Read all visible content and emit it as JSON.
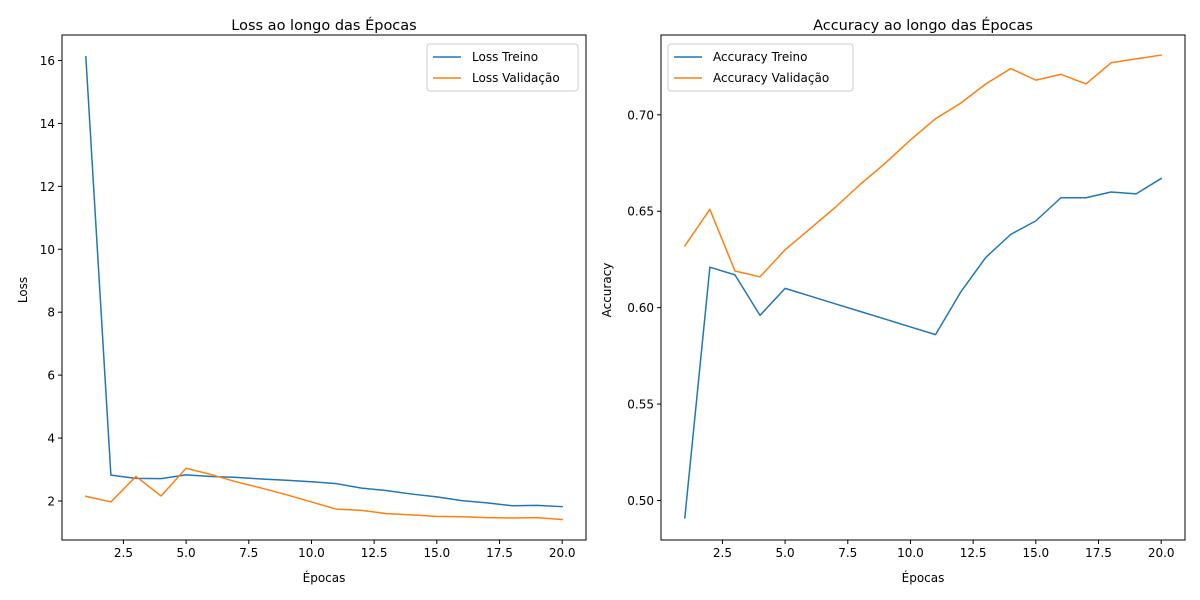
{
  "colors": {
    "series_1": "#1f77b4",
    "series_2": "#ff7f0e",
    "axis": "#000000",
    "background": "#ffffff"
  },
  "chart_data": [
    {
      "type": "line",
      "title": "Loss ao longo das Épocas",
      "xlabel": "Épocas",
      "ylabel": "Loss",
      "x": [
        1,
        2,
        3,
        4,
        5,
        6,
        7,
        8,
        9,
        10,
        11,
        12,
        13,
        14,
        15,
        16,
        17,
        18,
        19,
        20
      ],
      "xticks": [
        "2.5",
        "5.0",
        "7.5",
        "10.0",
        "12.5",
        "15.0",
        "17.5",
        "20.0"
      ],
      "yticks": [
        "2",
        "4",
        "6",
        "8",
        "10",
        "12",
        "14",
        "16"
      ],
      "xlim": [
        0.05,
        20.95
      ],
      "ylim": [
        0.76,
        16.81
      ],
      "grid": false,
      "legend_position": "top-right",
      "series": [
        {
          "name": "Loss Treino",
          "values": [
            16.12,
            2.82,
            2.72,
            2.71,
            2.83,
            2.78,
            2.75,
            2.7,
            2.66,
            2.61,
            2.55,
            2.41,
            2.33,
            2.22,
            2.13,
            2.01,
            1.94,
            1.85,
            1.86,
            1.82
          ]
        },
        {
          "name": "Loss Validação",
          "values": [
            2.15,
            1.97,
            2.78,
            2.16,
            3.04,
            2.84,
            2.61,
            2.41,
            2.2,
            1.97,
            1.74,
            1.7,
            1.6,
            1.56,
            1.51,
            1.5,
            1.47,
            1.46,
            1.47,
            1.41
          ]
        }
      ]
    },
    {
      "type": "line",
      "title": "Accuracy ao longo das Épocas",
      "xlabel": "Épocas",
      "ylabel": "Accuracy",
      "x": [
        1,
        2,
        3,
        4,
        5,
        6,
        7,
        8,
        9,
        10,
        11,
        12,
        13,
        14,
        15,
        16,
        17,
        18,
        19,
        20
      ],
      "xticks": [
        "2.5",
        "5.0",
        "7.5",
        "10.0",
        "12.5",
        "15.0",
        "17.5",
        "20.0"
      ],
      "yticks": [
        "0.50",
        "0.55",
        "0.60",
        "0.65",
        "0.70"
      ],
      "xlim": [
        0.05,
        20.95
      ],
      "ylim": [
        0.4795,
        0.7414
      ],
      "grid": false,
      "legend_position": "top-left",
      "series": [
        {
          "name": "Accuracy Treino",
          "values": [
            0.491,
            0.621,
            0.617,
            0.596,
            0.61,
            0.606,
            0.602,
            0.598,
            0.594,
            0.59,
            0.586,
            0.608,
            0.626,
            0.638,
            0.645,
            0.657,
            0.657,
            0.66,
            0.659,
            0.667
          ]
        },
        {
          "name": "Accuracy Validação",
          "values": [
            0.632,
            0.651,
            0.619,
            0.616,
            0.63,
            0.641,
            0.652,
            0.664,
            0.675,
            0.687,
            0.698,
            0.706,
            0.716,
            0.724,
            0.718,
            0.721,
            0.716,
            0.727,
            0.729,
            0.731
          ]
        }
      ]
    }
  ]
}
